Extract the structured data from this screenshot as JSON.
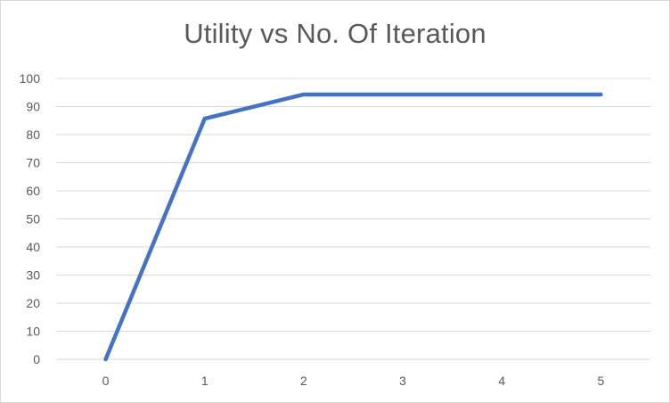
{
  "chart_data": {
    "type": "line",
    "title": "Utility vs No. Of Iteration",
    "xlabel": "",
    "ylabel": "",
    "x": [
      0,
      1,
      2,
      3,
      4,
      5
    ],
    "x_ticks": [
      "0",
      "1",
      "2",
      "3",
      "4",
      "5"
    ],
    "y_ticks": [
      "0",
      "10",
      "20",
      "30",
      "40",
      "50",
      "60",
      "70",
      "80",
      "90",
      "100"
    ],
    "ylim": [
      0,
      100
    ],
    "grid": "horizontal",
    "legend": "none",
    "series": [
      {
        "values": [
          0,
          85.7,
          94.3,
          94.3,
          94.3,
          94.3
        ],
        "color": "#4472c4"
      }
    ],
    "colors": {
      "line": "#4472c4",
      "grid": "#d9d9d9",
      "text": "#595959"
    }
  }
}
